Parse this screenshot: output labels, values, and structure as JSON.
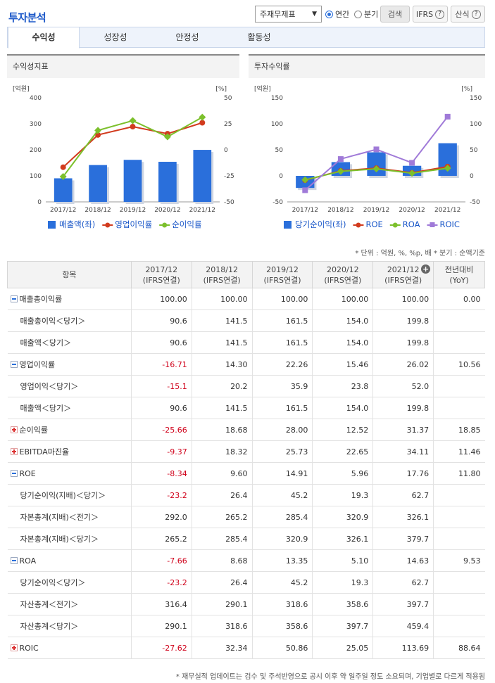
{
  "header": {
    "title": "투자분석",
    "select_value": "주재무제표",
    "radio_annual": "연간",
    "radio_quarter": "분기",
    "search_label": "검색",
    "ifrs_label": "IFRS",
    "formula_label": "산식",
    "help_glyph": "?"
  },
  "tabs": [
    "수익성",
    "성장성",
    "안정성",
    "활동성"
  ],
  "colors": {
    "bar": "#2a6fdb",
    "red": "#d23b1e",
    "green": "#7cc02c",
    "purple": "#a07ad8",
    "neg": "#d0021b"
  },
  "chart_data": [
    {
      "type": "bar",
      "title": "수익성지표",
      "categories": [
        "2017/12",
        "2018/12",
        "2019/12",
        "2020/12",
        "2021/12"
      ],
      "left_unit": "[억원]",
      "right_unit": "[%]",
      "ylim_left": [
        0,
        400
      ],
      "yticks_left": [
        "0",
        "100",
        "200",
        "300",
        "400"
      ],
      "ylim_right": [
        -50,
        50
      ],
      "yticks_right": [
        "-50",
        "-25",
        "0",
        "25",
        "50"
      ],
      "series": [
        {
          "name": "매출액(좌)",
          "kind": "bar",
          "axis": "left",
          "color": "#2a6fdb",
          "values": [
            90.6,
            141.5,
            161.5,
            154.0,
            199.8
          ]
        },
        {
          "name": "영업이익률",
          "kind": "line",
          "axis": "right",
          "color": "#d23b1e",
          "values": [
            -16.71,
            14.3,
            22.26,
            15.46,
            26.02
          ]
        },
        {
          "name": "순이익률",
          "kind": "line",
          "axis": "right",
          "color": "#7cc02c",
          "values": [
            -25.66,
            18.68,
            28.0,
            12.52,
            31.37
          ]
        }
      ]
    },
    {
      "type": "bar",
      "title": "투자수익률",
      "categories": [
        "2017/12",
        "2018/12",
        "2019/12",
        "2020/12",
        "2021/12"
      ],
      "left_unit": "[억원]",
      "right_unit": "[%]",
      "ylim_left": [
        -50,
        150
      ],
      "yticks_left": [
        "-50",
        "0",
        "50",
        "100",
        "150"
      ],
      "ylim_right": [
        -50,
        150
      ],
      "yticks_right": [
        "-50",
        "0",
        "50",
        "100",
        "150"
      ],
      "series": [
        {
          "name": "당기순이익(좌)",
          "kind": "bar",
          "axis": "left",
          "color": "#2a6fdb",
          "values": [
            -23.2,
            26.4,
            45.2,
            19.3,
            62.7
          ]
        },
        {
          "name": "ROE",
          "kind": "line",
          "axis": "right",
          "color": "#d23b1e",
          "values": [
            -8.34,
            9.6,
            14.91,
            5.96,
            17.76
          ]
        },
        {
          "name": "ROA",
          "kind": "line",
          "axis": "right",
          "color": "#7cc02c",
          "values": [
            -7.66,
            8.68,
            13.35,
            5.1,
            14.63
          ]
        },
        {
          "name": "ROIC",
          "kind": "line",
          "axis": "right",
          "color": "#a07ad8",
          "values": [
            -27.62,
            32.34,
            50.86,
            25.05,
            113.69
          ]
        }
      ]
    }
  ],
  "note": "* 단위 : 억원, %, %p, 배   * 분기 : 순액기준",
  "table": {
    "col_item": "항목",
    "columns": [
      {
        "year": "2017/12",
        "basis": "(IFRS연결)"
      },
      {
        "year": "2018/12",
        "basis": "(IFRS연결)"
      },
      {
        "year": "2019/12",
        "basis": "(IFRS연결)"
      },
      {
        "year": "2020/12",
        "basis": "(IFRS연결)"
      },
      {
        "year": "2021/12",
        "basis": "(IFRS연결)"
      }
    ],
    "col_yoy": "전년대비",
    "col_yoy_sub": "(YoY)",
    "add_glyph": "+",
    "rows": [
      {
        "label": "매출총이익률",
        "type": "minus",
        "values": [
          "100.00",
          "100.00",
          "100.00",
          "100.00",
          "100.00"
        ],
        "yoy": "0.00"
      },
      {
        "label": "매출총이익＜당기＞",
        "type": "sub",
        "values": [
          "90.6",
          "141.5",
          "161.5",
          "154.0",
          "199.8"
        ],
        "yoy": ""
      },
      {
        "label": "매출액＜당기＞",
        "type": "sub",
        "values": [
          "90.6",
          "141.5",
          "161.5",
          "154.0",
          "199.8"
        ],
        "yoy": ""
      },
      {
        "label": "영업이익률",
        "type": "minus",
        "values": [
          "-16.71",
          "14.30",
          "22.26",
          "15.46",
          "26.02"
        ],
        "yoy": "10.56"
      },
      {
        "label": "영업이익＜당기＞",
        "type": "sub",
        "values": [
          "-15.1",
          "20.2",
          "35.9",
          "23.8",
          "52.0"
        ],
        "yoy": ""
      },
      {
        "label": "매출액＜당기＞",
        "type": "sub",
        "values": [
          "90.6",
          "141.5",
          "161.5",
          "154.0",
          "199.8"
        ],
        "yoy": ""
      },
      {
        "label": "순이익률",
        "type": "plus",
        "values": [
          "-25.66",
          "18.68",
          "28.00",
          "12.52",
          "31.37"
        ],
        "yoy": "18.85"
      },
      {
        "label": "EBITDA마진율",
        "type": "plus",
        "values": [
          "-9.37",
          "18.32",
          "25.73",
          "22.65",
          "34.11"
        ],
        "yoy": "11.46"
      },
      {
        "label": "ROE",
        "type": "minus",
        "values": [
          "-8.34",
          "9.60",
          "14.91",
          "5.96",
          "17.76"
        ],
        "yoy": "11.80"
      },
      {
        "label": "당기순이익(지배)＜당기＞",
        "type": "sub",
        "values": [
          "-23.2",
          "26.4",
          "45.2",
          "19.3",
          "62.7"
        ],
        "yoy": ""
      },
      {
        "label": "자본총계(지배)＜전기＞",
        "type": "sub",
        "values": [
          "292.0",
          "265.2",
          "285.4",
          "320.9",
          "326.1"
        ],
        "yoy": ""
      },
      {
        "label": "자본총계(지배)＜당기＞",
        "type": "sub",
        "values": [
          "265.2",
          "285.4",
          "320.9",
          "326.1",
          "379.7"
        ],
        "yoy": ""
      },
      {
        "label": "ROA",
        "type": "minus",
        "values": [
          "-7.66",
          "8.68",
          "13.35",
          "5.10",
          "14.63"
        ],
        "yoy": "9.53"
      },
      {
        "label": "당기순이익＜당기＞",
        "type": "sub",
        "values": [
          "-23.2",
          "26.4",
          "45.2",
          "19.3",
          "62.7"
        ],
        "yoy": ""
      },
      {
        "label": "자산총계＜전기＞",
        "type": "sub",
        "values": [
          "316.4",
          "290.1",
          "318.6",
          "358.6",
          "397.7"
        ],
        "yoy": ""
      },
      {
        "label": "자산총계＜당기＞",
        "type": "sub",
        "values": [
          "290.1",
          "318.6",
          "358.6",
          "397.7",
          "459.4"
        ],
        "yoy": ""
      },
      {
        "label": "ROIC",
        "type": "plus",
        "values": [
          "-27.62",
          "32.34",
          "50.86",
          "25.05",
          "113.69"
        ],
        "yoy": "88.64"
      }
    ]
  },
  "footer": "* 재무실적 업데이트는 검수 및 주석반영으로 공시 이후 약 일주일 정도 소요되며, 기업별로 다르게 적용됨"
}
